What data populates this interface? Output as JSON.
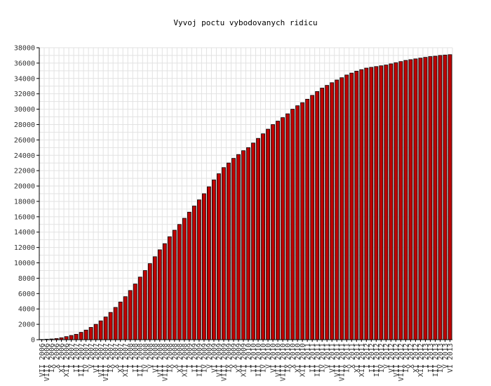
{
  "chart_data": {
    "type": "bar",
    "title": "Vyvoj poctu vybodovanych ridicu",
    "xlabel": "",
    "ylabel": "",
    "ylim": [
      0,
      38000
    ],
    "y_ticks": [
      0,
      2000,
      4000,
      6000,
      8000,
      10000,
      12000,
      14000,
      16000,
      18000,
      20000,
      22000,
      24000,
      26000,
      28000,
      30000,
      32000,
      34000,
      36000,
      38000
    ],
    "grid": true,
    "bar_color": "#c00000",
    "categories": [
      "VII 2006",
      "VIII 2006",
      "IX 2006",
      "X 2006",
      "XI 2006",
      "XII 2006",
      "I 2007",
      "II 2007",
      "III 2007",
      "IV 2007",
      "V 2007",
      "VI 2007",
      "VII 2007",
      "VIII 2007",
      "IX 2007",
      "X 2007",
      "XI 2007",
      "XII 2007",
      "I 2008",
      "II 2008",
      "III 2008",
      "IV 2008",
      "V 2008",
      "VI 2008",
      "VII 2008",
      "VIII 2008",
      "IX 2008",
      "X 2008",
      "XI 2008",
      "XII 2008",
      "I 2009",
      "II 2009",
      "III 2009",
      "IV 2009",
      "V 2009",
      "VI 2009",
      "VII 2009",
      "VIII 2009",
      "IX 2009",
      "X 2009",
      "XI 2009",
      "XII 2009",
      "I 2010",
      "II 2010",
      "III 2010",
      "IV 2010",
      "V 2010",
      "VI 2010",
      "VII 2010",
      "VIII 2010",
      "IX 2010",
      "X 2010",
      "XI 2010",
      "XII 2010",
      "I 2011",
      "II 2011",
      "III 2011",
      "IV 2011",
      "V 2011",
      "VI 2011",
      "VII 2011",
      "VIII 2011",
      "IX 2011",
      "X 2011",
      "XI 2011",
      "XII 2011",
      "I 2012",
      "II 2012",
      "III 2012",
      "IV 2012",
      "V 2012",
      "VI 2012",
      "VII 2012",
      "VIII 2012",
      "IX 2012",
      "X 2012",
      "XI 2012",
      "XII 2012",
      "I 2013",
      "II 2013",
      "III 2013",
      "IV 2013",
      "V 2013",
      "VI 2013"
    ],
    "values": [
      30,
      60,
      90,
      150,
      250,
      400,
      550,
      700,
      950,
      1250,
      1600,
      2000,
      2450,
      2950,
      3550,
      4200,
      4900,
      5600,
      6400,
      7250,
      8150,
      9000,
      9900,
      10800,
      11700,
      12500,
      13400,
      14250,
      15000,
      15800,
      16600,
      17400,
      18200,
      19000,
      19900,
      20800,
      21600,
      22400,
      23000,
      23600,
      24100,
      24600,
      25000,
      25600,
      26200,
      26800,
      27400,
      28000,
      28450,
      28900,
      29400,
      30000,
      30450,
      30850,
      31300,
      31800,
      32300,
      32750,
      33100,
      33450,
      33800,
      34100,
      34450,
      34700,
      34950,
      35150,
      35350,
      35450,
      35550,
      35650,
      35750,
      35900,
      36050,
      36200,
      36350,
      36450,
      36550,
      36650,
      36750,
      36850,
      36900,
      37000,
      37050,
      37100
    ]
  }
}
